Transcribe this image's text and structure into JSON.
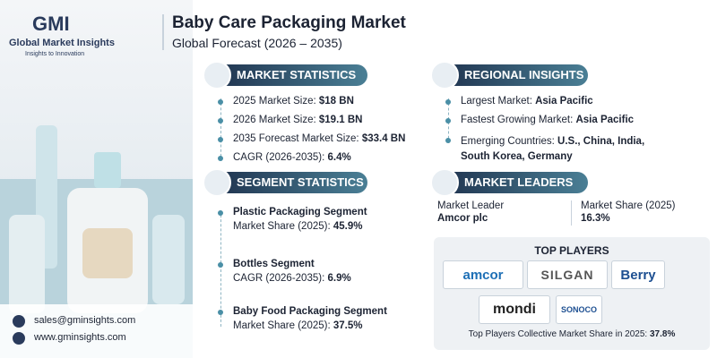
{
  "header": {
    "logo": "GMI",
    "company": "Global Market Insights",
    "tagline": "Insights to Innovation",
    "title": "Baby Care Packaging Market",
    "subtitle": "Global Forecast (2026 – 2035)"
  },
  "market_statistics": {
    "heading": "MARKET STATISTICS",
    "items": [
      {
        "label": "2025 Market Size:",
        "value": "$18 BN"
      },
      {
        "label": "2026 Market Size:",
        "value": "$19.1 BN"
      },
      {
        "label": "2035 Forecast Market Size:",
        "value": "$33.4 BN"
      },
      {
        "label": "CAGR (2026-2035):",
        "value": "6.4%"
      }
    ]
  },
  "segment_statistics": {
    "heading": "SEGMENT STATISTICS",
    "items": [
      {
        "name": "Plastic Packaging Segment",
        "label": "Market Share (2025):",
        "value": "45.9%"
      },
      {
        "name": "Bottles Segment",
        "label": "CAGR (2026-2035):",
        "value": "6.9%"
      },
      {
        "name": "Baby Food Packaging Segment",
        "label": "Market Share (2025):",
        "value": "37.5%"
      }
    ]
  },
  "regional_insights": {
    "heading": "REGIONAL INSIGHTS",
    "items": [
      {
        "label": "Largest Market:",
        "value": "Asia Pacific"
      },
      {
        "label": "Fastest Growing Market:",
        "value": "Asia Pacific"
      },
      {
        "label": "Emerging Countries:",
        "value": "U.S., China, India, South Korea, Germany"
      }
    ]
  },
  "market_leaders": {
    "heading": "MARKET LEADERS",
    "leader_label": "Market Leader",
    "leader": "Amcor plc",
    "share_label": "Market Share (2025)",
    "share": "16.3%"
  },
  "top_players": {
    "heading": "TOP PLAYERS",
    "players": [
      "amcor",
      "SILGAN",
      "Berry",
      "mondi",
      "SONOCO"
    ],
    "footer_label": "Top Players Collective Market Share in 2025:",
    "footer_value": "37.8%"
  },
  "contact": {
    "email": "sales@gminsights.com",
    "website": "www.gminsights.com"
  }
}
